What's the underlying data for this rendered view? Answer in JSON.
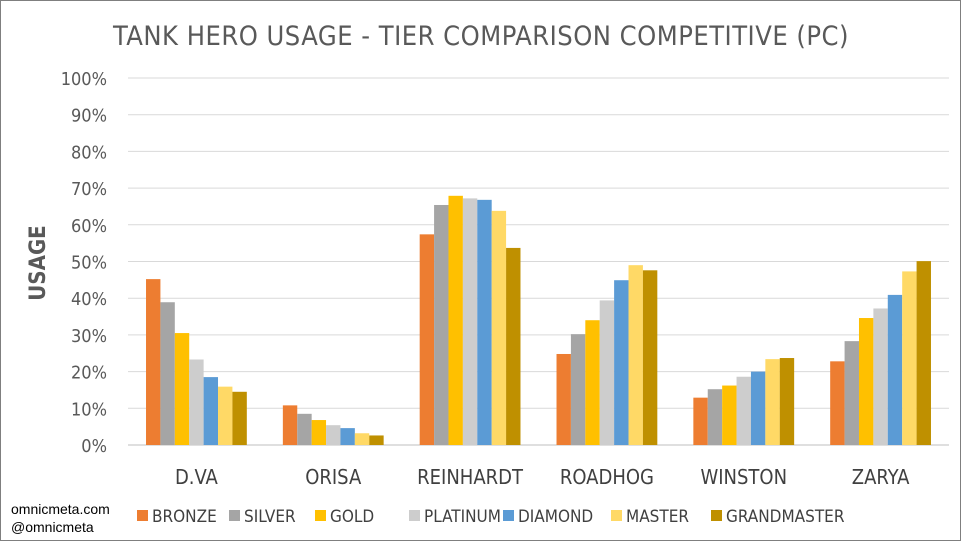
{
  "chart_data": {
    "type": "bar",
    "title": "TANK HERO USAGE - TIER COMPARISON COMPETITIVE (PC)",
    "xlabel": "",
    "ylabel": "USAGE",
    "ylim": [
      0,
      100
    ],
    "yticks": [
      "0%",
      "10%",
      "20%",
      "30%",
      "40%",
      "50%",
      "60%",
      "70%",
      "80%",
      "90%",
      "100%"
    ],
    "categories": [
      "D.VA",
      "ORISA",
      "REINHARDT",
      "ROADHOG",
      "WINSTON",
      "ZARYA"
    ],
    "grid": true,
    "legend_position": "bottom",
    "series": [
      {
        "name": "BRONZE",
        "color": "#ed7d31",
        "values": [
          45.2,
          10.8,
          57.4,
          24.8,
          12.9,
          22.8
        ]
      },
      {
        "name": "SILVER",
        "color": "#a5a5a5",
        "values": [
          38.9,
          8.5,
          65.4,
          30.2,
          15.2,
          28.3
        ]
      },
      {
        "name": "GOLD",
        "color": "#ffc000",
        "values": [
          30.5,
          6.8,
          67.9,
          34.0,
          16.2,
          34.6
        ]
      },
      {
        "name": "PLATINUM",
        "color": "#cdcdcd",
        "values": [
          23.3,
          5.4,
          67.2,
          39.4,
          18.6,
          37.2
        ]
      },
      {
        "name": "DIAMOND",
        "color": "#5b9bd5",
        "values": [
          18.5,
          4.6,
          66.8,
          44.9,
          20.0,
          40.9
        ]
      },
      {
        "name": "MASTER",
        "color": "#ffd966",
        "values": [
          15.9,
          3.2,
          63.8,
          49.0,
          23.4,
          47.3
        ]
      },
      {
        "name": "GRANDMASTER",
        "color": "#bf9000",
        "values": [
          14.5,
          2.6,
          53.7,
          47.6,
          23.7,
          50.1
        ]
      }
    ]
  },
  "credits": {
    "line1": "omnicmeta.com",
    "line2": "@omnicmeta"
  }
}
